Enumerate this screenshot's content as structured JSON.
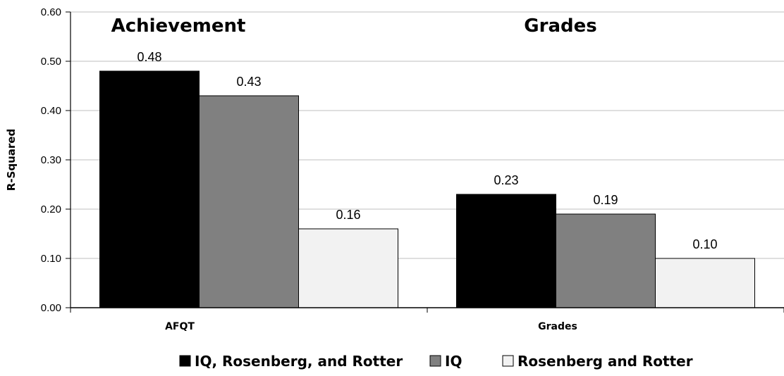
{
  "chart_data": {
    "type": "bar",
    "title": "",
    "panel_titles": [
      "Achievement",
      "Grades"
    ],
    "categories": [
      "AFQT",
      "Grades"
    ],
    "series": [
      {
        "name": "IQ, Rosenberg, and Rotter",
        "values": [
          0.48,
          0.23
        ],
        "labels": [
          "0.48",
          "0.23"
        ],
        "color": "#000000"
      },
      {
        "name": "IQ",
        "values": [
          0.43,
          0.19
        ],
        "labels": [
          "0.43",
          "0.19"
        ],
        "color": "#808080"
      },
      {
        "name": "Rosenberg and Rotter",
        "values": [
          0.16,
          0.1
        ],
        "labels": [
          "0.16",
          "0.10"
        ],
        "color": "#f2f2f2"
      }
    ],
    "xlabel": "",
    "ylabel": "R-Squared",
    "ylim": [
      0,
      0.6
    ],
    "yticks": [
      "0.00",
      "0.10",
      "0.20",
      "0.30",
      "0.40",
      "0.50",
      "0.60"
    ],
    "grid": true,
    "legend_position": "bottom"
  }
}
